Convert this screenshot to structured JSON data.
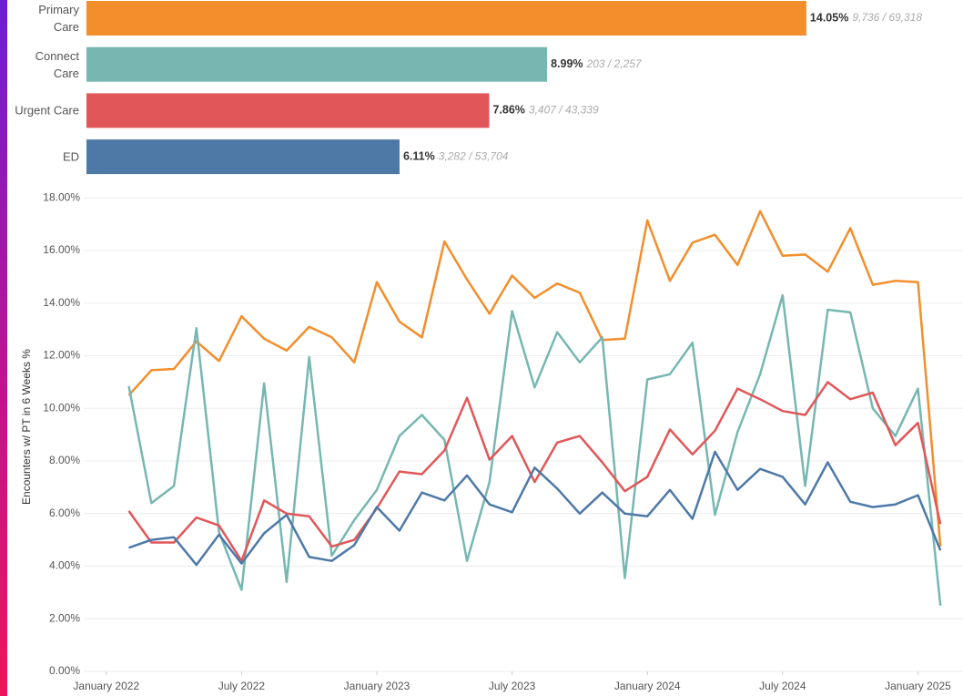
{
  "chart_data": [
    {
      "type": "hbar",
      "categories": [
        "Primary Care",
        "Connect Care",
        "Urgent Care",
        "ED"
      ],
      "values": [
        14.05,
        8.99,
        7.86,
        6.11
      ],
      "value_labels": [
        "14.05%",
        "8.99%",
        "7.86%",
        "6.11%"
      ],
      "annotations": [
        "9,736 / 69,318",
        "203 / 2,257",
        "3,407 / 43,339",
        "3,282 / 53,704"
      ],
      "colors": [
        "#f28e2b",
        "#76b7b2",
        "#e15759",
        "#4e79a7"
      ],
      "xlim": [
        0,
        17
      ]
    },
    {
      "type": "line",
      "ylabel": "Encounters w/ PT in 6 Weeks %",
      "x": [
        "2022-02",
        "2022-03",
        "2022-04",
        "2022-05",
        "2022-06",
        "2022-07",
        "2022-08",
        "2022-09",
        "2022-10",
        "2022-11",
        "2022-12",
        "2023-01",
        "2023-02",
        "2023-03",
        "2023-04",
        "2023-05",
        "2023-06",
        "2023-07",
        "2023-08",
        "2023-09",
        "2023-10",
        "2023-11",
        "2023-12",
        "2024-01",
        "2024-02",
        "2024-03",
        "2024-04",
        "2024-05",
        "2024-06",
        "2024-07",
        "2024-08",
        "2024-09",
        "2024-10",
        "2024-11",
        "2024-12",
        "2025-01",
        "2025-02"
      ],
      "series": [
        {
          "color": "#f28e2b",
          "values": [
            10.5,
            11.45,
            11.5,
            12.55,
            11.8,
            13.5,
            12.65,
            12.2,
            13.1,
            12.7,
            11.75,
            14.8,
            13.3,
            12.7,
            16.35,
            14.9,
            13.6,
            15.05,
            14.2,
            14.75,
            14.4,
            12.6,
            12.65,
            17.15,
            14.85,
            16.3,
            16.6,
            15.45,
            17.5,
            15.8,
            15.85,
            15.2,
            16.85,
            14.7,
            14.85,
            14.8,
            4.75
          ]
        },
        {
          "color": "#76b7b2",
          "values": [
            10.85,
            6.4,
            7.05,
            13.05,
            5.3,
            3.1,
            10.95,
            3.4,
            11.95,
            4.4,
            5.75,
            6.9,
            8.95,
            9.75,
            8.8,
            4.2,
            7.2,
            13.7,
            10.8,
            12.9,
            11.75,
            12.7,
            3.55,
            11.1,
            11.3,
            12.5,
            5.95,
            9.1,
            11.3,
            14.3,
            7.05,
            13.75,
            13.65,
            10.0,
            8.95,
            10.75,
            2.5
          ]
        },
        {
          "color": "#e15759",
          "values": [
            6.1,
            4.9,
            4.9,
            5.85,
            5.55,
            4.2,
            6.5,
            6.0,
            5.9,
            4.75,
            5.0,
            6.2,
            7.6,
            7.5,
            8.4,
            10.4,
            8.05,
            8.95,
            7.2,
            8.7,
            8.95,
            7.95,
            6.85,
            7.4,
            9.2,
            8.25,
            9.15,
            10.75,
            10.35,
            9.9,
            9.75,
            11.0,
            10.35,
            10.6,
            8.6,
            9.45,
            5.6
          ]
        },
        {
          "color": "#4e79a7",
          "values": [
            4.7,
            5.0,
            5.1,
            4.05,
            5.2,
            4.1,
            5.25,
            5.95,
            4.35,
            4.2,
            4.8,
            6.25,
            5.35,
            6.8,
            6.5,
            7.45,
            6.35,
            6.05,
            7.75,
            6.95,
            6.0,
            6.8,
            6.0,
            5.9,
            6.9,
            5.8,
            8.35,
            6.9,
            7.7,
            7.4,
            6.35,
            7.95,
            6.45,
            6.25,
            6.35,
            6.7,
            4.6
          ]
        }
      ],
      "xlim": [
        "2021-12",
        "2025-03"
      ],
      "xticks": [
        {
          "value": "2022-01",
          "label": "January 2022"
        },
        {
          "value": "2022-07",
          "label": "July 2022"
        },
        {
          "value": "2023-01",
          "label": "January 2023"
        },
        {
          "value": "2023-07",
          "label": "July 2023"
        },
        {
          "value": "2024-01",
          "label": "January 2024"
        },
        {
          "value": "2024-07",
          "label": "July 2024"
        },
        {
          "value": "2025-01",
          "label": "January 2025"
        }
      ],
      "ylim": [
        0,
        18.6
      ],
      "yticks": [
        {
          "value": 0,
          "label": "0.00%"
        },
        {
          "value": 2,
          "label": "2.00%"
        },
        {
          "value": 4,
          "label": "4.00%"
        },
        {
          "value": 6,
          "label": "6.00%"
        },
        {
          "value": 8,
          "label": "8.00%"
        },
        {
          "value": 10,
          "label": "10.00%"
        },
        {
          "value": 12,
          "label": "12.00%"
        },
        {
          "value": 14,
          "label": "14.00%"
        },
        {
          "value": 16,
          "label": "16.00%"
        },
        {
          "value": 18,
          "label": "18.00%"
        }
      ],
      "grid": true
    }
  ]
}
